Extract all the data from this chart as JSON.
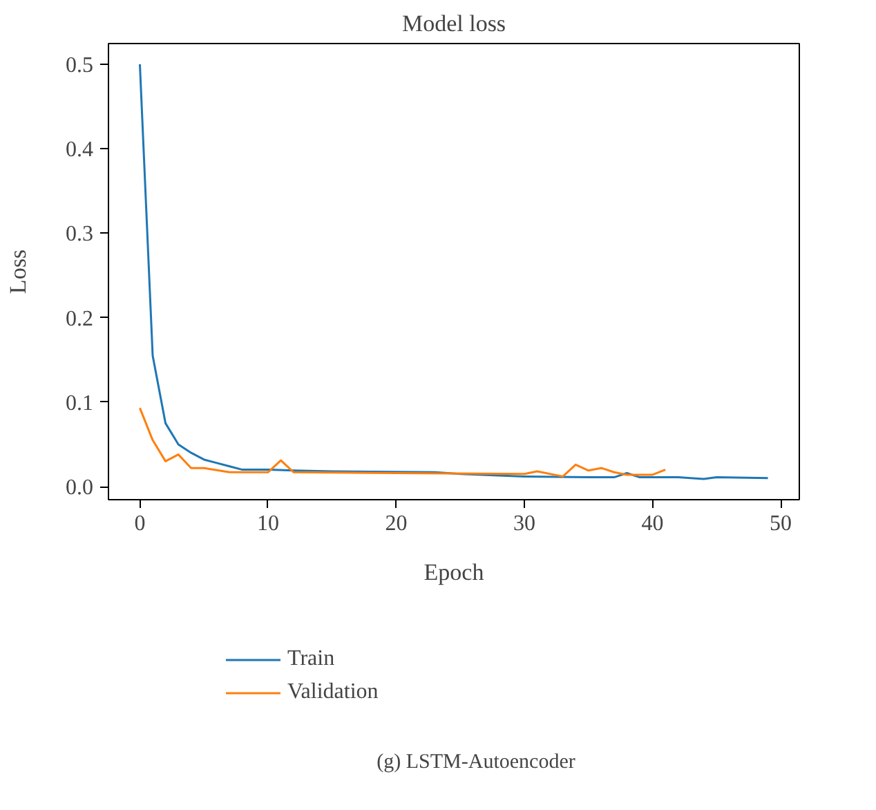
{
  "chart_data": {
    "type": "line",
    "title": "Model loss",
    "xlabel": "Epoch",
    "ylabel": "Loss",
    "series": [
      {
        "name": "Train",
        "color": "#1f77b4",
        "x": [
          0,
          1,
          2,
          3,
          4,
          5,
          6,
          7,
          8,
          10,
          12,
          15,
          23,
          25,
          30,
          35,
          37,
          38,
          39,
          42,
          44,
          45,
          49
        ],
        "values": [
          0.5,
          0.155,
          0.075,
          0.05,
          0.04,
          0.032,
          0.028,
          0.024,
          0.02,
          0.02,
          0.019,
          0.018,
          0.017,
          0.015,
          0.012,
          0.011,
          0.011,
          0.016,
          0.011,
          0.011,
          0.009,
          0.011,
          0.01
        ]
      },
      {
        "name": "Validation",
        "color": "#ff7f0e",
        "x": [
          0,
          1,
          2,
          3,
          4,
          5,
          7,
          10,
          11,
          12,
          20,
          30,
          31,
          33,
          34,
          35,
          36,
          37,
          38,
          40,
          41
        ],
        "values": [
          0.093,
          0.055,
          0.03,
          0.038,
          0.022,
          0.022,
          0.017,
          0.017,
          0.031,
          0.017,
          0.016,
          0.015,
          0.018,
          0.012,
          0.026,
          0.019,
          0.022,
          0.017,
          0.014,
          0.014,
          0.02
        ]
      }
    ],
    "xlim": [
      -2.45,
      51.45
    ],
    "ylim": [
      -0.0155,
      0.5245
    ],
    "xticks": [
      0,
      10,
      20,
      30,
      40,
      50
    ],
    "yticks": [
      {
        "value": 0,
        "label": "0.0"
      },
      0.1,
      0.2,
      0.3,
      0.4,
      0.5
    ],
    "grid": false,
    "legend": "bottom",
    "line_style": "solid",
    "marker": "none",
    "annotations": [
      "(g) LSTM-Autoencoder"
    ]
  }
}
